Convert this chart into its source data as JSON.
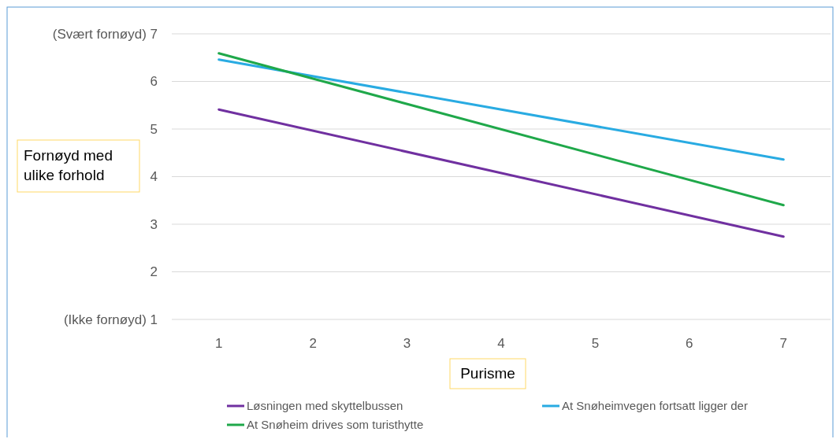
{
  "chart_data": {
    "type": "line",
    "xlabel": "Purisme",
    "ylabel": "Fornøyd med\nulike forhold",
    "x": [
      1,
      7
    ],
    "xlim": [
      0.5,
      7.5
    ],
    "xticks": [
      1,
      2,
      3,
      4,
      5,
      6,
      7
    ],
    "ylim": [
      1,
      7
    ],
    "yticks": [
      {
        "value": 1,
        "label": "(Ikke fornøyd)  1"
      },
      2,
      3,
      4,
      5,
      6,
      {
        "value": 7,
        "label": "(Svært fornøyd)  7"
      }
    ],
    "grid": "y",
    "legend": "bottom",
    "marker": "none",
    "line_style": "solid",
    "series": [
      {
        "name": "Løsningen med skyttelbussen",
        "color": "#7030a0",
        "values": [
          5.41,
          2.74
        ]
      },
      {
        "name": "At Snøheimvegen fortsatt ligger der",
        "color": "#29abe2",
        "values": [
          6.46,
          4.36
        ]
      },
      {
        "name": "At Snøheim drives som turisthytte",
        "color": "#1fa84a",
        "values": [
          6.59,
          3.4
        ]
      }
    ]
  }
}
